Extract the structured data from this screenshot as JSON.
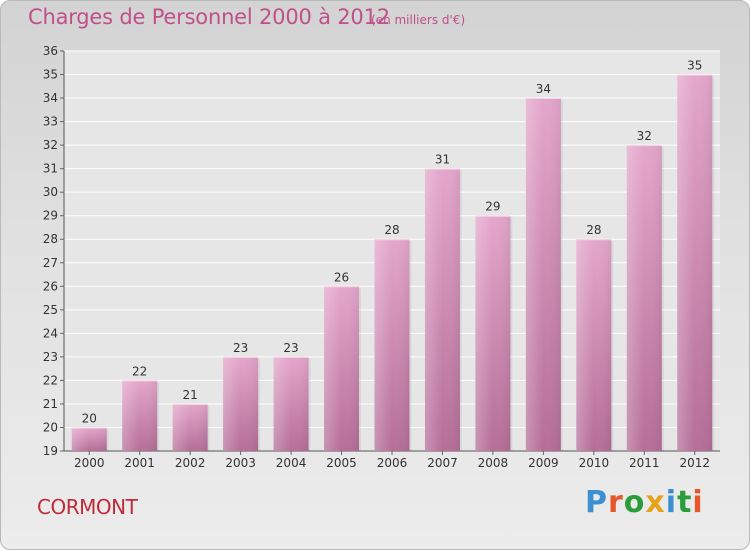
{
  "header": {
    "title": "Charges de Personnel 2000 à 2012",
    "subtitle": "(en milliers d'€)"
  },
  "footer": {
    "commune": "CORMONT",
    "brand": "Proxiti",
    "brand_colors": [
      "#3c8fd0",
      "#e8572a",
      "#2a9d3a",
      "#e8a21a",
      "#3c8fd0",
      "#2a9d3a",
      "#e8572a"
    ]
  },
  "chart_data": {
    "type": "bar",
    "title": "Charges de Personnel 2000 à 2012",
    "subtitle": "(en milliers d'€)",
    "categories": [
      "2000",
      "2001",
      "2002",
      "2003",
      "2004",
      "2005",
      "2006",
      "2007",
      "2008",
      "2009",
      "2010",
      "2011",
      "2012"
    ],
    "values": [
      20,
      22,
      21,
      23,
      23,
      26,
      28,
      31,
      29,
      34,
      28,
      32,
      35
    ],
    "data_labels": [
      "20",
      "22",
      "21",
      "23",
      "23",
      "26",
      "28",
      "31",
      "29",
      "34",
      "28",
      "32",
      "35"
    ],
    "y_ticks": [
      "19",
      "20",
      "21",
      "22",
      "23",
      "24",
      "25",
      "26",
      "27",
      "28",
      "29",
      "30",
      "31",
      "32",
      "33",
      "34",
      "35",
      "36"
    ],
    "ylim": [
      19,
      36
    ],
    "xlabel": "",
    "ylabel": "",
    "grid": true,
    "bar_color": "#d98ab9"
  }
}
